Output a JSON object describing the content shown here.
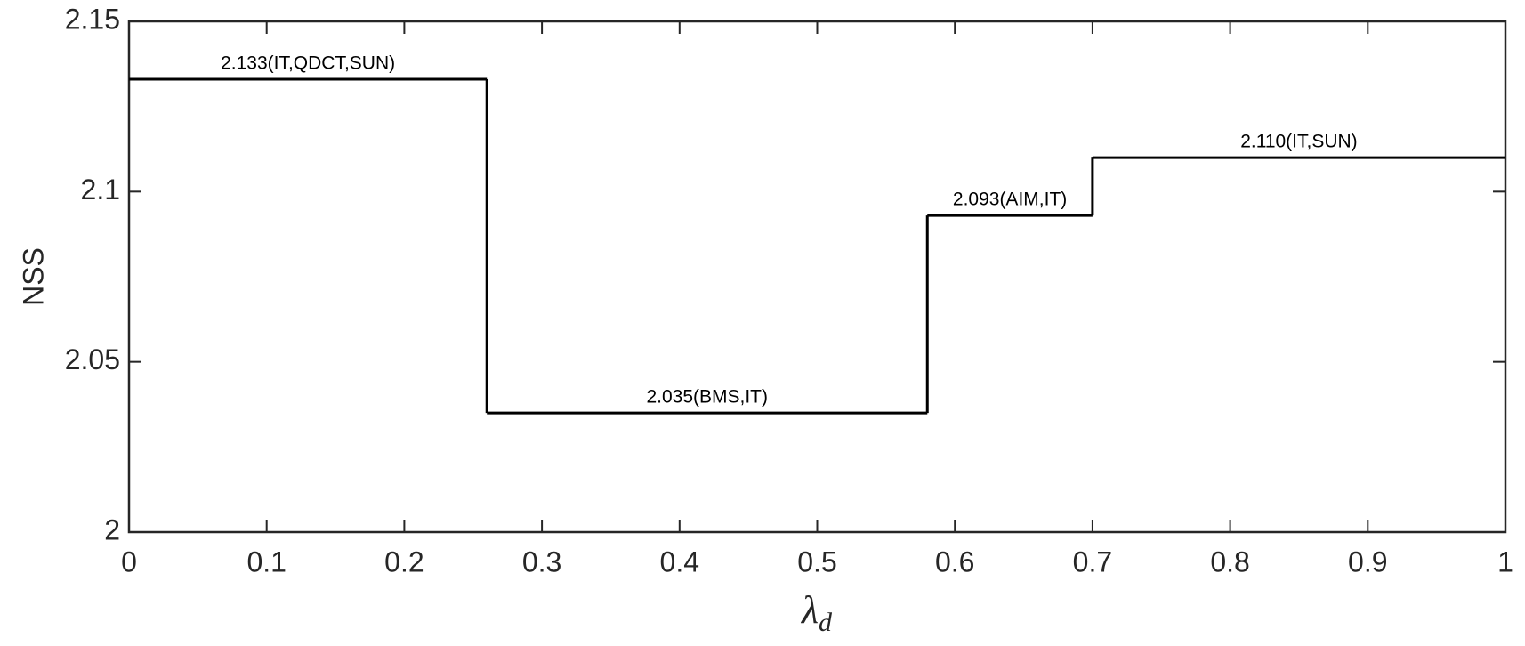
{
  "chart_data": {
    "type": "step",
    "x": [
      0,
      0.26,
      0.58,
      0.7
    ],
    "values": [
      2.133,
      2.035,
      2.093,
      2.11
    ],
    "value_labels": [
      "2.133(IT,QDCT,SUN)",
      "2.035(BMS,IT)",
      "2.093(AIM,IT)",
      "2.110(IT,SUN)"
    ],
    "color": "#000000",
    "xlim": [
      0,
      1
    ],
    "xticks": [
      0,
      0.1,
      0.2,
      0.3,
      0.4,
      0.5,
      0.6,
      0.7,
      0.8,
      0.9,
      1
    ],
    "ylim": [
      2,
      2.15
    ],
    "yticks": [
      2,
      2.05,
      2.1,
      2.15
    ],
    "x_label": "λ",
    "x_label_subscript": "d",
    "y_label": "NSS"
  }
}
